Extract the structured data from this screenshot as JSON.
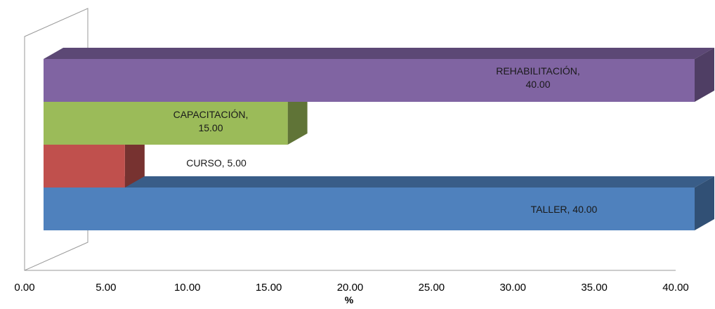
{
  "chart_data": {
    "type": "bar",
    "orientation": "horizontal",
    "style": "3d",
    "categories": [
      "TALLER",
      "CURSO",
      "CAPACITACIÓN",
      "REHABILITACIÓN"
    ],
    "values": [
      40.0,
      5.0,
      15.0,
      40.0
    ],
    "colors": [
      "#4F81BD",
      "#C0504D",
      "#9BBB59",
      "#8064A2"
    ],
    "data_labels": [
      "TALLER, 40.00",
      "CURSO, 5.00",
      "CAPACITACIÓN,\n15.00",
      "REHABILITACIÓN,\n40.00"
    ],
    "xlabel": "%",
    "ylabel": "",
    "xlim": [
      0,
      40
    ],
    "x_ticks": [
      "0.00",
      "5.00",
      "10.00",
      "15.00",
      "20.00",
      "25.00",
      "30.00",
      "35.00",
      "40.00"
    ],
    "grid": false,
    "legend": "none"
  }
}
